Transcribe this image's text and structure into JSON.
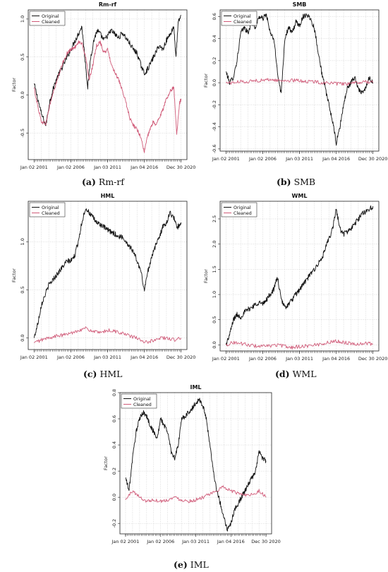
{
  "colors": {
    "original": "#111111",
    "cleaned": "#d05a78",
    "grid": "#bdbdbd",
    "axis": "#222222"
  },
  "chart_data": [
    {
      "type": "line",
      "title": "Rm-rf",
      "caption_label": "(a)",
      "caption_text": "Rm-rf",
      "ylabel": "Factor",
      "ylim": [
        -0.85,
        1.12
      ],
      "yticks": [
        "-0.5",
        "0.0",
        "0.5",
        "1.0"
      ],
      "ytick_values": [
        -0.5,
        0.0,
        0.5,
        1.0
      ],
      "xticks": [
        "Jan 02 2001",
        "Jan 02 2006",
        "Jan 03 2011",
        "Jan 04 2016",
        "Dec 30 2020"
      ],
      "grid": true,
      "legend": "top-left",
      "series": [
        {
          "name": "Original",
          "color": "original",
          "x": [
            2001.0,
            2001.5,
            2002.0,
            2002.6,
            2003.1,
            2003.5,
            2004.0,
            2004.5,
            2005.0,
            2005.5,
            2006.0,
            2006.5,
            2007.0,
            2007.5,
            2007.9,
            2008.3,
            2008.7,
            2009.2,
            2009.6,
            2010.0,
            2010.5,
            2011.0,
            2011.5,
            2012.0,
            2012.5,
            2013.0,
            2013.5,
            2014.0,
            2014.5,
            2015.0,
            2015.5,
            2016.0,
            2016.5,
            2017.0,
            2017.5,
            2018.0,
            2018.5,
            2019.0,
            2019.5,
            2020.0,
            2020.3,
            2020.6,
            2020.99
          ],
          "y": [
            0.15,
            -0.05,
            -0.25,
            -0.4,
            -0.1,
            0.05,
            0.2,
            0.3,
            0.4,
            0.5,
            0.6,
            0.7,
            0.8,
            0.9,
            0.5,
            0.1,
            0.5,
            0.75,
            0.85,
            0.8,
            0.72,
            0.78,
            0.85,
            0.8,
            0.75,
            0.82,
            0.75,
            0.68,
            0.6,
            0.55,
            0.4,
            0.28,
            0.35,
            0.45,
            0.55,
            0.65,
            0.6,
            0.72,
            0.8,
            0.9,
            0.5,
            0.95,
            1.05
          ]
        },
        {
          "name": "Cleaned",
          "color": "cleaned",
          "x": [
            2001.0,
            2001.5,
            2002.0,
            2002.6,
            2003.1,
            2003.5,
            2004.0,
            2004.5,
            2005.0,
            2005.5,
            2006.0,
            2006.5,
            2007.0,
            2007.5,
            2008.0,
            2008.5,
            2009.0,
            2009.5,
            2010.0,
            2010.5,
            2011.0,
            2011.5,
            2012.0,
            2012.5,
            2013.0,
            2013.5,
            2014.0,
            2014.5,
            2015.0,
            2015.5,
            2016.0,
            2016.4,
            2016.8,
            2017.2,
            2017.6,
            2018.0,
            2018.5,
            2019.0,
            2019.5,
            2020.0,
            2020.4,
            2020.8,
            2020.99
          ],
          "y": [
            0.1,
            -0.15,
            -0.35,
            -0.38,
            -0.15,
            0.0,
            0.15,
            0.3,
            0.45,
            0.55,
            0.6,
            0.62,
            0.7,
            0.68,
            0.5,
            0.2,
            0.4,
            0.65,
            0.7,
            0.55,
            0.6,
            0.4,
            0.3,
            0.2,
            0.05,
            -0.1,
            -0.3,
            -0.4,
            -0.45,
            -0.55,
            -0.75,
            -0.55,
            -0.45,
            -0.35,
            -0.4,
            -0.3,
            -0.2,
            -0.05,
            0.05,
            0.1,
            -0.5,
            -0.1,
            -0.05
          ]
        }
      ]
    },
    {
      "type": "line",
      "title": "SMB",
      "caption_label": "(b)",
      "caption_text": "SMB",
      "ylabel": "Factor",
      "ylim": [
        -0.62,
        0.66
      ],
      "yticks": [
        "-0.6",
        "-0.4",
        "-0.2",
        "0.0",
        "0.2",
        "0.4",
        "0.6"
      ],
      "ytick_values": [
        -0.6,
        -0.4,
        -0.2,
        0.0,
        0.2,
        0.4,
        0.6
      ],
      "xticks": [
        "Jan 02 2001",
        "Jan 02 2006",
        "Jan 03 2011",
        "Jan 04 2016",
        "Dec 30 2020"
      ],
      "grid": true,
      "legend": "top-left",
      "series": [
        {
          "name": "Original",
          "color": "original",
          "x": [
            2001.0,
            2001.5,
            2002.0,
            2002.5,
            2003.0,
            2003.5,
            2004.0,
            2004.5,
            2005.0,
            2005.5,
            2006.0,
            2006.5,
            2007.0,
            2007.5,
            2008.0,
            2008.5,
            2009.0,
            2009.5,
            2010.0,
            2010.5,
            2011.0,
            2011.5,
            2012.0,
            2012.5,
            2013.0,
            2013.5,
            2014.0,
            2014.5,
            2015.0,
            2015.5,
            2016.0,
            2016.5,
            2017.0,
            2017.5,
            2018.0,
            2018.5,
            2019.0,
            2019.5,
            2020.0,
            2020.5,
            2020.99
          ],
          "y": [
            0.1,
            0.0,
            0.05,
            0.2,
            0.45,
            0.5,
            0.45,
            0.55,
            0.5,
            0.6,
            0.58,
            0.62,
            0.45,
            0.4,
            0.1,
            -0.1,
            0.4,
            0.5,
            0.45,
            0.55,
            0.52,
            0.6,
            0.62,
            0.58,
            0.5,
            0.3,
            0.1,
            -0.05,
            -0.2,
            -0.35,
            -0.55,
            -0.4,
            -0.2,
            -0.05,
            0.0,
            0.05,
            -0.05,
            -0.1,
            -0.05,
            0.05,
            0.0
          ]
        },
        {
          "name": "Cleaned",
          "color": "cleaned",
          "x": [
            2001.0,
            2002.0,
            2003.0,
            2004.0,
            2005.0,
            2006.0,
            2007.0,
            2008.0,
            2009.0,
            2010.0,
            2011.0,
            2012.0,
            2013.0,
            2014.0,
            2015.0,
            2016.0,
            2017.0,
            2018.0,
            2019.0,
            2020.0,
            2020.99
          ],
          "y": [
            0.0,
            0.0,
            0.01,
            0.01,
            0.02,
            0.02,
            0.03,
            0.02,
            0.02,
            0.02,
            0.02,
            0.01,
            0.01,
            0.0,
            0.0,
            -0.01,
            -0.01,
            -0.01,
            0.0,
            0.01,
            0.0
          ]
        }
      ]
    },
    {
      "type": "line",
      "title": "HML",
      "caption_label": "(c)",
      "caption_text": "HML",
      "ylabel": "Factor",
      "ylim": [
        -0.12,
        1.42
      ],
      "yticks": [
        "0.0",
        "0.5",
        "1.0"
      ],
      "ytick_values": [
        0.0,
        0.5,
        1.0
      ],
      "xticks": [
        "Jan 02 2001",
        "Jan 02 2006",
        "Jan 03 2011",
        "Jan 04 2016",
        "Dec 30 2020"
      ],
      "grid": true,
      "legend": "top-left",
      "series": [
        {
          "name": "Original",
          "color": "original",
          "x": [
            2001.0,
            2001.5,
            2002.0,
            2002.5,
            2003.0,
            2003.5,
            2004.0,
            2004.5,
            2005.0,
            2005.5,
            2006.0,
            2006.5,
            2007.0,
            2007.5,
            2008.0,
            2008.5,
            2009.0,
            2009.5,
            2010.0,
            2010.5,
            2011.0,
            2011.5,
            2012.0,
            2012.5,
            2013.0,
            2013.5,
            2014.0,
            2014.5,
            2015.0,
            2015.5,
            2016.0,
            2016.5,
            2017.0,
            2017.5,
            2018.0,
            2018.5,
            2019.0,
            2019.5,
            2020.0,
            2020.5,
            2020.99
          ],
          "y": [
            0.0,
            0.15,
            0.35,
            0.45,
            0.55,
            0.6,
            0.65,
            0.7,
            0.75,
            0.8,
            0.8,
            0.85,
            1.0,
            1.2,
            1.35,
            1.3,
            1.25,
            1.2,
            1.18,
            1.15,
            1.12,
            1.1,
            1.08,
            1.05,
            1.05,
            1.0,
            0.95,
            0.9,
            0.8,
            0.7,
            0.5,
            0.7,
            0.85,
            0.95,
            1.05,
            1.15,
            1.2,
            1.3,
            1.25,
            1.15,
            1.2
          ]
        },
        {
          "name": "Cleaned",
          "color": "cleaned",
          "x": [
            2001.0,
            2002.0,
            2003.0,
            2004.0,
            2005.0,
            2006.0,
            2007.0,
            2008.0,
            2009.0,
            2010.0,
            2011.0,
            2012.0,
            2013.0,
            2014.0,
            2015.0,
            2016.0,
            2017.0,
            2018.0,
            2019.0,
            2020.0,
            2020.99
          ],
          "y": [
            -0.05,
            -0.02,
            0.0,
            0.02,
            0.03,
            0.05,
            0.08,
            0.1,
            0.07,
            0.05,
            0.08,
            0.07,
            0.05,
            0.02,
            0.0,
            -0.05,
            -0.03,
            0.0,
            0.0,
            -0.02,
            0.0
          ]
        }
      ]
    },
    {
      "type": "line",
      "title": "WML",
      "caption_label": "(d)",
      "caption_text": "WML",
      "ylabel": "Factor",
      "ylim": [
        -0.12,
        2.85
      ],
      "yticks": [
        "0.0",
        "0.5",
        "1.0",
        "1.5",
        "2.0",
        "2.5"
      ],
      "ytick_values": [
        0.0,
        0.5,
        1.0,
        1.5,
        2.0,
        2.5
      ],
      "xticks": [
        "Jan 02 2001",
        "Jan 02 2006",
        "Jan 03 2011",
        "Jan 04 2016",
        "Dec 30 2020"
      ],
      "grid": true,
      "legend": "top-left",
      "series": [
        {
          "name": "Original",
          "color": "original",
          "x": [
            2001.0,
            2001.5,
            2002.0,
            2002.5,
            2003.0,
            2003.5,
            2004.0,
            2004.5,
            2005.0,
            2005.5,
            2006.0,
            2006.5,
            2007.0,
            2007.5,
            2008.0,
            2008.5,
            2009.0,
            2009.5,
            2010.0,
            2010.5,
            2011.0,
            2011.5,
            2012.0,
            2012.5,
            2013.0,
            2013.5,
            2014.0,
            2014.5,
            2015.0,
            2015.5,
            2016.0,
            2016.5,
            2017.0,
            2017.5,
            2018.0,
            2018.5,
            2019.0,
            2019.5,
            2020.0,
            2020.5,
            2020.99
          ],
          "y": [
            0.0,
            0.2,
            0.5,
            0.6,
            0.55,
            0.65,
            0.7,
            0.75,
            0.8,
            0.85,
            0.8,
            0.9,
            1.0,
            1.1,
            1.35,
            0.9,
            0.75,
            0.8,
            0.9,
            1.0,
            1.1,
            1.2,
            1.3,
            1.4,
            1.5,
            1.6,
            1.7,
            1.9,
            2.1,
            2.3,
            2.7,
            2.3,
            2.2,
            2.25,
            2.3,
            2.4,
            2.5,
            2.6,
            2.65,
            2.7,
            2.75
          ]
        },
        {
          "name": "Cleaned",
          "color": "cleaned",
          "x": [
            2001.0,
            2002.0,
            2003.0,
            2004.0,
            2005.0,
            2006.0,
            2007.0,
            2008.0,
            2009.0,
            2010.0,
            2011.0,
            2012.0,
            2013.0,
            2014.0,
            2015.0,
            2016.0,
            2017.0,
            2018.0,
            2019.0,
            2020.0,
            2020.99
          ],
          "y": [
            0.0,
            0.05,
            0.03,
            0.0,
            -0.02,
            -0.03,
            -0.02,
            0.0,
            -0.03,
            -0.05,
            -0.03,
            -0.02,
            0.0,
            0.02,
            0.05,
            0.08,
            0.05,
            0.03,
            0.02,
            0.03,
            0.02
          ]
        }
      ]
    },
    {
      "type": "line",
      "title": "IML",
      "caption_label": "(e)",
      "caption_text": "IML",
      "ylabel": "Factor",
      "ylim": [
        -0.28,
        0.8
      ],
      "yticks": [
        "-0.2",
        "0.0",
        "0.2",
        "0.4",
        "0.6",
        "0.8"
      ],
      "ytick_values": [
        -0.2,
        0.0,
        0.2,
        0.4,
        0.6,
        0.8
      ],
      "xticks": [
        "Jan 02 2001",
        "Jan 02 2006",
        "Jan 03 2011",
        "Jan 04 2016",
        "Dec 30 2020"
      ],
      "grid": true,
      "legend": "top-left",
      "series": [
        {
          "name": "Original",
          "color": "original",
          "x": [
            2001.0,
            2001.5,
            2002.0,
            2002.5,
            2003.0,
            2003.5,
            2004.0,
            2004.5,
            2005.0,
            2005.5,
            2006.0,
            2006.5,
            2007.0,
            2007.5,
            2008.0,
            2008.5,
            2009.0,
            2009.5,
            2010.0,
            2010.5,
            2011.0,
            2011.5,
            2012.0,
            2012.5,
            2013.0,
            2013.5,
            2014.0,
            2014.5,
            2015.0,
            2015.5,
            2016.0,
            2016.5,
            2017.0,
            2017.5,
            2018.0,
            2018.5,
            2019.0,
            2019.5,
            2020.0,
            2020.5,
            2020.99
          ],
          "y": [
            0.15,
            0.05,
            0.3,
            0.5,
            0.6,
            0.65,
            0.62,
            0.55,
            0.5,
            0.45,
            0.6,
            0.55,
            0.5,
            0.35,
            0.3,
            0.4,
            0.6,
            0.62,
            0.65,
            0.68,
            0.72,
            0.75,
            0.7,
            0.6,
            0.4,
            0.2,
            0.05,
            -0.05,
            -0.15,
            -0.25,
            -0.2,
            -0.1,
            -0.05,
            0.0,
            0.05,
            0.1,
            0.15,
            0.2,
            0.35,
            0.3,
            0.28
          ]
        },
        {
          "name": "Cleaned",
          "color": "cleaned",
          "x": [
            2001.0,
            2002.0,
            2003.0,
            2004.0,
            2005.0,
            2006.0,
            2007.0,
            2008.0,
            2009.0,
            2010.0,
            2011.0,
            2012.0,
            2013.0,
            2014.0,
            2015.0,
            2016.0,
            2017.0,
            2018.0,
            2019.0,
            2020.0,
            2020.99
          ],
          "y": [
            -0.02,
            0.05,
            0.0,
            -0.03,
            -0.02,
            -0.03,
            -0.02,
            0.0,
            -0.02,
            -0.03,
            -0.02,
            0.0,
            0.02,
            0.05,
            0.08,
            0.05,
            0.03,
            0.02,
            0.02,
            0.05,
            0.0
          ]
        }
      ]
    }
  ]
}
